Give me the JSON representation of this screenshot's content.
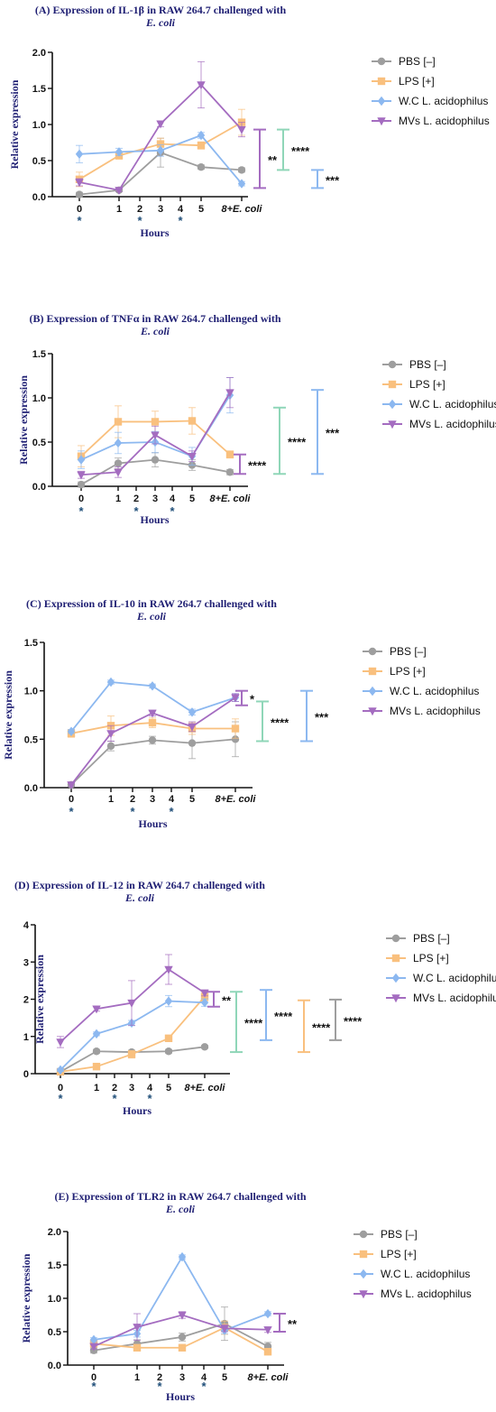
{
  "legend": [
    {
      "label": "PBS [–]",
      "color": "#9e9e9e",
      "marker": "circle"
    },
    {
      "label": "LPS [+]",
      "color": "#f9c07e",
      "marker": "square"
    },
    {
      "label": "W.C L. acidophilus",
      "color": "#8cb8f0",
      "marker": "diamond"
    },
    {
      "label": "MVs L. acidophilus",
      "color": "#a46cc0",
      "marker": "triangle-down"
    }
  ],
  "colors": {
    "PBS": "#9e9e9e",
    "LPS": "#f9c07e",
    "WC": "#8cb8f0",
    "MVs": "#a46cc0",
    "title": "#1f1f73",
    "bracket_green": "#8fd6b8",
    "bracket_blue": "#8cb8f0"
  },
  "chart_data": [
    {
      "type": "line",
      "title": "(A) Expression of IL-1β in RAW 264.7 challenged with",
      "title_line2": "E. coli",
      "xlabel": "Hours",
      "ylabel": "Relative expression",
      "categories": [
        "0",
        "1",
        "2",
        "3",
        "4",
        "5",
        "8+E. coli"
      ],
      "x_positions": [
        0,
        1,
        2,
        3,
        4,
        5,
        6
      ],
      "ylim": [
        0,
        2.0
      ],
      "yticks": [
        "0.0",
        "0.5",
        "1.0",
        "1.5",
        "2.0"
      ],
      "time_stars_at": [
        "0",
        "2",
        "4"
      ],
      "series": [
        {
          "name": "PBS [–]",
          "x": [
            0,
            1,
            3,
            5,
            6
          ],
          "values": [
            0.03,
            0.09,
            0.61,
            0.41,
            0.37
          ],
          "errors": [
            0.03,
            0.02,
            0.2,
            0.03,
            0.03
          ]
        },
        {
          "name": "LPS [+]",
          "x": [
            0,
            1,
            3,
            5,
            6
          ],
          "values": [
            0.24,
            0.57,
            0.73,
            0.71,
            1.03
          ],
          "errors": [
            0.1,
            0.05,
            0.08,
            0.05,
            0.18
          ]
        },
        {
          "name": "W.C L. acidophilus",
          "x": [
            0,
            1,
            3,
            5,
            6
          ],
          "values": [
            0.59,
            0.62,
            0.64,
            0.85,
            0.18
          ],
          "errors": [
            0.12,
            0.05,
            0.08,
            0.04,
            0.03
          ]
        },
        {
          "name": "MVs L. acidophilus",
          "x": [
            0,
            1,
            3,
            5,
            6
          ],
          "values": [
            0.2,
            0.09,
            1.01,
            1.55,
            0.93
          ],
          "errors": [
            0.05,
            0.02,
            0.04,
            0.32,
            0.1
          ]
        }
      ],
      "brackets": [
        {
          "color": "#a46cc0",
          "low": 0.12,
          "high": 0.93,
          "stars": "**"
        },
        {
          "color": "#8fd6b8",
          "low": 0.37,
          "high": 0.93,
          "stars": "****"
        },
        {
          "color": "#8cb8f0",
          "low": 0.12,
          "high": 0.37,
          "stars": "***"
        }
      ]
    },
    {
      "type": "line",
      "title": "(B) Expression of TNFα in RAW 264.7 challenged with",
      "title_line2": "E. coli",
      "xlabel": "Hours",
      "ylabel": "Relative expression",
      "categories": [
        "0",
        "1",
        "2",
        "3",
        "4",
        "5",
        "8+E. coli"
      ],
      "x_positions": [
        0,
        1,
        2,
        3,
        4,
        5,
        6
      ],
      "ylim": [
        0,
        1.5
      ],
      "yticks": [
        "0.0",
        "0.5",
        "1.0",
        "1.5"
      ],
      "time_stars_at": [
        "0",
        "2",
        "4"
      ],
      "series": [
        {
          "name": "PBS [–]",
          "x": [
            0,
            1,
            3,
            5,
            6
          ],
          "values": [
            0.02,
            0.26,
            0.3,
            0.24,
            0.16
          ],
          "errors": [
            0.03,
            0.06,
            0.08,
            0.06,
            0.03
          ]
        },
        {
          "name": "LPS [+]",
          "x": [
            0,
            1,
            3,
            5,
            6
          ],
          "values": [
            0.34,
            0.73,
            0.73,
            0.74,
            0.36
          ],
          "errors": [
            0.12,
            0.18,
            0.12,
            0.15,
            0.04
          ]
        },
        {
          "name": "W.C L. acidophilus",
          "x": [
            0,
            1,
            3,
            5,
            6
          ],
          "values": [
            0.3,
            0.49,
            0.5,
            0.34,
            1.03
          ],
          "errors": [
            0.1,
            0.12,
            0.12,
            0.1,
            0.2
          ]
        },
        {
          "name": "MVs L. acidophilus",
          "x": [
            0,
            1,
            3,
            5,
            6
          ],
          "values": [
            0.13,
            0.16,
            0.58,
            0.34,
            1.06
          ],
          "errors": [
            0.04,
            0.06,
            0.1,
            0.06,
            0.17
          ]
        }
      ],
      "brackets": [
        {
          "color": "#a46cc0",
          "low": 0.14,
          "high": 0.36,
          "stars": "****"
        },
        {
          "color": "#8fd6b8",
          "low": 0.14,
          "high": 0.89,
          "stars": "****"
        },
        {
          "color": "#8cb8f0",
          "low": 0.14,
          "high": 1.09,
          "stars": "***"
        }
      ]
    },
    {
      "type": "line",
      "title": "(C) Expression of IL-10 in RAW 264.7 challenged with",
      "title_line2": "E. coli",
      "xlabel": "Hours",
      "ylabel": "Relative expression",
      "categories": [
        "0",
        "1",
        "2",
        "3",
        "4",
        "5",
        "8+E. coli"
      ],
      "x_positions": [
        0,
        1,
        2,
        3,
        4,
        5,
        6
      ],
      "ylim": [
        0,
        1.5
      ],
      "yticks": [
        "0.0",
        "0.5",
        "1.0",
        "1.5"
      ],
      "time_stars_at": [
        "0",
        "2",
        "4"
      ],
      "series": [
        {
          "name": "PBS [–]",
          "x": [
            0,
            1,
            3,
            5,
            6
          ],
          "values": [
            0.03,
            0.43,
            0.49,
            0.46,
            0.5
          ],
          "errors": [
            0.02,
            0.05,
            0.04,
            0.16,
            0.18
          ]
        },
        {
          "name": "LPS [+]",
          "x": [
            0,
            1,
            3,
            5,
            6
          ],
          "values": [
            0.56,
            0.64,
            0.67,
            0.61,
            0.61
          ],
          "errors": [
            0.04,
            0.1,
            0.05,
            0.06,
            0.1
          ]
        },
        {
          "name": "W.C L. acidophilus",
          "x": [
            0,
            1,
            3,
            5,
            6
          ],
          "values": [
            0.58,
            1.09,
            1.05,
            0.78,
            0.93
          ],
          "errors": [
            0.02,
            0.02,
            0.02,
            0.03,
            0.04
          ]
        },
        {
          "name": "MVs L. acidophilus",
          "x": [
            0,
            1,
            3,
            5,
            6
          ],
          "values": [
            0.03,
            0.56,
            0.77,
            0.63,
            0.93
          ],
          "errors": [
            0.02,
            0.08,
            0.03,
            0.05,
            0.04
          ]
        }
      ],
      "brackets": [
        {
          "color": "#a46cc0",
          "low": 0.85,
          "high": 1.0,
          "stars": "*"
        },
        {
          "color": "#8fd6b8",
          "low": 0.48,
          "high": 0.89,
          "stars": "****"
        },
        {
          "color": "#8cb8f0",
          "low": 0.48,
          "high": 1.0,
          "stars": "***"
        }
      ]
    },
    {
      "type": "line",
      "title": "(D) Expression of IL-12 in RAW 264.7 challenged with",
      "title_line2": "E. coli",
      "xlabel": "Hours",
      "ylabel": "Relative expression",
      "categories": [
        "0",
        "1",
        "2",
        "3",
        "4",
        "5",
        "8+E. coli"
      ],
      "x_positions": [
        0,
        1,
        2,
        3,
        4,
        5,
        6
      ],
      "ylim": [
        0,
        4
      ],
      "yticks": [
        "0",
        "1",
        "2",
        "3",
        "4"
      ],
      "time_stars_at": [
        "0",
        "2",
        "4"
      ],
      "series": [
        {
          "name": "PBS [–]",
          "x": [
            0,
            1,
            3,
            5,
            6
          ],
          "values": [
            0.05,
            0.6,
            0.58,
            0.6,
            0.72
          ],
          "errors": [
            0.03,
            0.05,
            0.05,
            0.05,
            0.04
          ]
        },
        {
          "name": "LPS [+]",
          "x": [
            0,
            1,
            3,
            5,
            6
          ],
          "values": [
            0.05,
            0.19,
            0.52,
            0.95,
            2.07
          ],
          "errors": [
            0.03,
            0.04,
            0.1,
            0.08,
            0.12
          ]
        },
        {
          "name": "W.C L. acidophilus",
          "x": [
            0,
            1,
            3,
            5,
            6
          ],
          "values": [
            0.1,
            1.07,
            1.36,
            1.95,
            1.91
          ],
          "errors": [
            0.04,
            0.05,
            0.07,
            0.15,
            0.1
          ]
        },
        {
          "name": "MVs L. acidophilus",
          "x": [
            0,
            1,
            3,
            5,
            6
          ],
          "values": [
            0.85,
            1.74,
            1.9,
            2.8,
            2.17
          ],
          "errors": [
            0.15,
            0.06,
            0.6,
            0.4,
            0.08
          ]
        }
      ],
      "brackets": [
        {
          "color": "#a46cc0",
          "low": 1.8,
          "high": 2.2,
          "stars": "**"
        },
        {
          "color": "#8fd6b8",
          "low": 0.58,
          "high": 2.2,
          "stars": "****"
        },
        {
          "color": "#8cb8f0",
          "low": 0.9,
          "high": 2.25,
          "stars": "****"
        },
        {
          "color": "#f9c07e",
          "low": 0.58,
          "high": 1.97,
          "stars": "****"
        },
        {
          "color": "#9e9e9e",
          "low": 0.9,
          "high": 1.99,
          "stars": "****"
        }
      ]
    },
    {
      "type": "line",
      "title": "(E) Expression of TLR2 in RAW 264.7 challenged with",
      "title_line2": "E. coli",
      "xlabel": "Hours",
      "ylabel": "Relative expression",
      "categories": [
        "0",
        "1",
        "2",
        "3",
        "4",
        "5",
        "8+E. coli"
      ],
      "x_positions": [
        0,
        1,
        2,
        3,
        4,
        5,
        6
      ],
      "ylim": [
        0,
        2.0
      ],
      "yticks": [
        "0.0",
        "0.5",
        "1.0",
        "1.5",
        "2.0"
      ],
      "time_stars_at": [
        "0",
        "2",
        "4"
      ],
      "series": [
        {
          "name": "PBS [–]",
          "x": [
            0,
            1,
            3,
            5,
            6
          ],
          "values": [
            0.22,
            0.32,
            0.42,
            0.62,
            0.28
          ],
          "errors": [
            0.04,
            0.06,
            0.06,
            0.25,
            0.06
          ]
        },
        {
          "name": "LPS [+]",
          "x": [
            0,
            1,
            3,
            5,
            6
          ],
          "values": [
            0.32,
            0.26,
            0.26,
            0.56,
            0.2
          ],
          "errors": [
            0.05,
            0.04,
            0.04,
            0.1,
            0.04
          ]
        },
        {
          "name": "W.C L. acidophilus",
          "x": [
            0,
            1,
            3,
            5,
            6
          ],
          "values": [
            0.38,
            0.47,
            1.62,
            0.52,
            0.77
          ],
          "errors": [
            0.03,
            0.05,
            0.03,
            0.05,
            0.03
          ]
        },
        {
          "name": "MVs L. acidophilus",
          "x": [
            0,
            1,
            3,
            5,
            6
          ],
          "values": [
            0.28,
            0.57,
            0.75,
            0.55,
            0.53
          ],
          "errors": [
            0.04,
            0.2,
            0.05,
            0.05,
            0.04
          ]
        }
      ],
      "brackets": [
        {
          "color": "#a46cc0",
          "low": 0.5,
          "high": 0.77,
          "stars": "**"
        }
      ]
    }
  ]
}
